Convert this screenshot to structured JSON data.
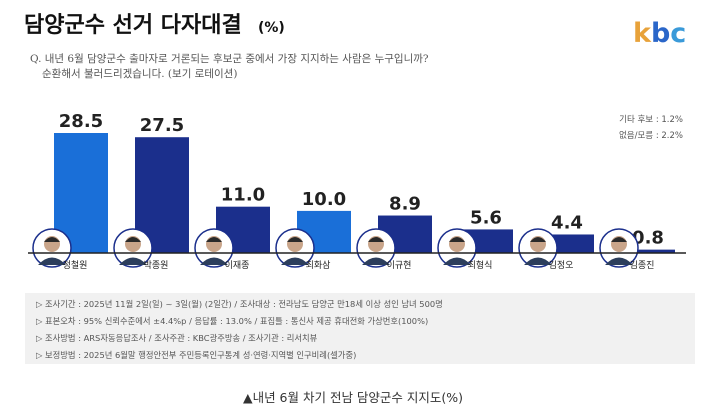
{
  "header": {
    "title_main": "담양군수 선거 다자대결",
    "title_unit": "(%)",
    "logo": "kbc"
  },
  "question": {
    "line1": "Q. 내년 6월 담양군수 출마자로 거론되는 후보군 중에서 가장 지지하는 사람은 누구입니까?",
    "line2": "순환해서 불러드리겠습니다. (보기 로테이션)"
  },
  "other_responses": [
    "기타 후보 : 1.2%",
    "없음/모름 : 2.2%"
  ],
  "survey_notes": [
    "▷ 조사기간 : 2025년 11월 2일(일) ~ 3일(월) (2일간) / 조사대상 : 전라남도 담양군 만18세 이상 성인 남녀 500명",
    "▷ 표본오차 : 95% 신뢰수준에서 ±4.4%p / 응답률 : 13.0% / 표집틀 : 통신사 제공 휴대전화 가상번호(100%)",
    "▷ 조사방법 : ARS자동응답조사 / 조사주관 : KBC광주방송 / 조사기관 : 리서치뷰",
    "▷ 보정방법 : 2025년 6월말 행정안전부 주민등록인구통계 성·연령·지역별 인구비례(셀가중)"
  ],
  "caption": "▲내년 6월 차기 전남 담양군수 지지도(%)",
  "colors": {
    "bar_top": "#1a6fd8",
    "bar": "#1b2f8c",
    "logo_k": "#e8a23a",
    "logo_b": "#2a66c9",
    "logo_c": "#3a9ad9",
    "note_box": "#f1f1f1",
    "baseline": "#222222"
  },
  "chart_data": {
    "type": "bar",
    "title": "담양군수 선거 다자대결 (%)",
    "categories": [
      "정철원",
      "박종원",
      "이재종",
      "최화삼",
      "이규현",
      "최형식",
      "김정오",
      "김종진"
    ],
    "values": [
      28.5,
      27.5,
      11.0,
      10.0,
      8.9,
      5.6,
      4.4,
      0.8
    ],
    "value_labels": [
      "28.5",
      "27.5",
      "11.0",
      "10.0",
      "8.9",
      "5.6",
      "4.4",
      "0.8"
    ],
    "highlight_index": [
      0,
      3
    ],
    "ylim": [
      0,
      28.5
    ],
    "xlabel": "",
    "ylabel": "",
    "grid": false,
    "legend": "none"
  }
}
